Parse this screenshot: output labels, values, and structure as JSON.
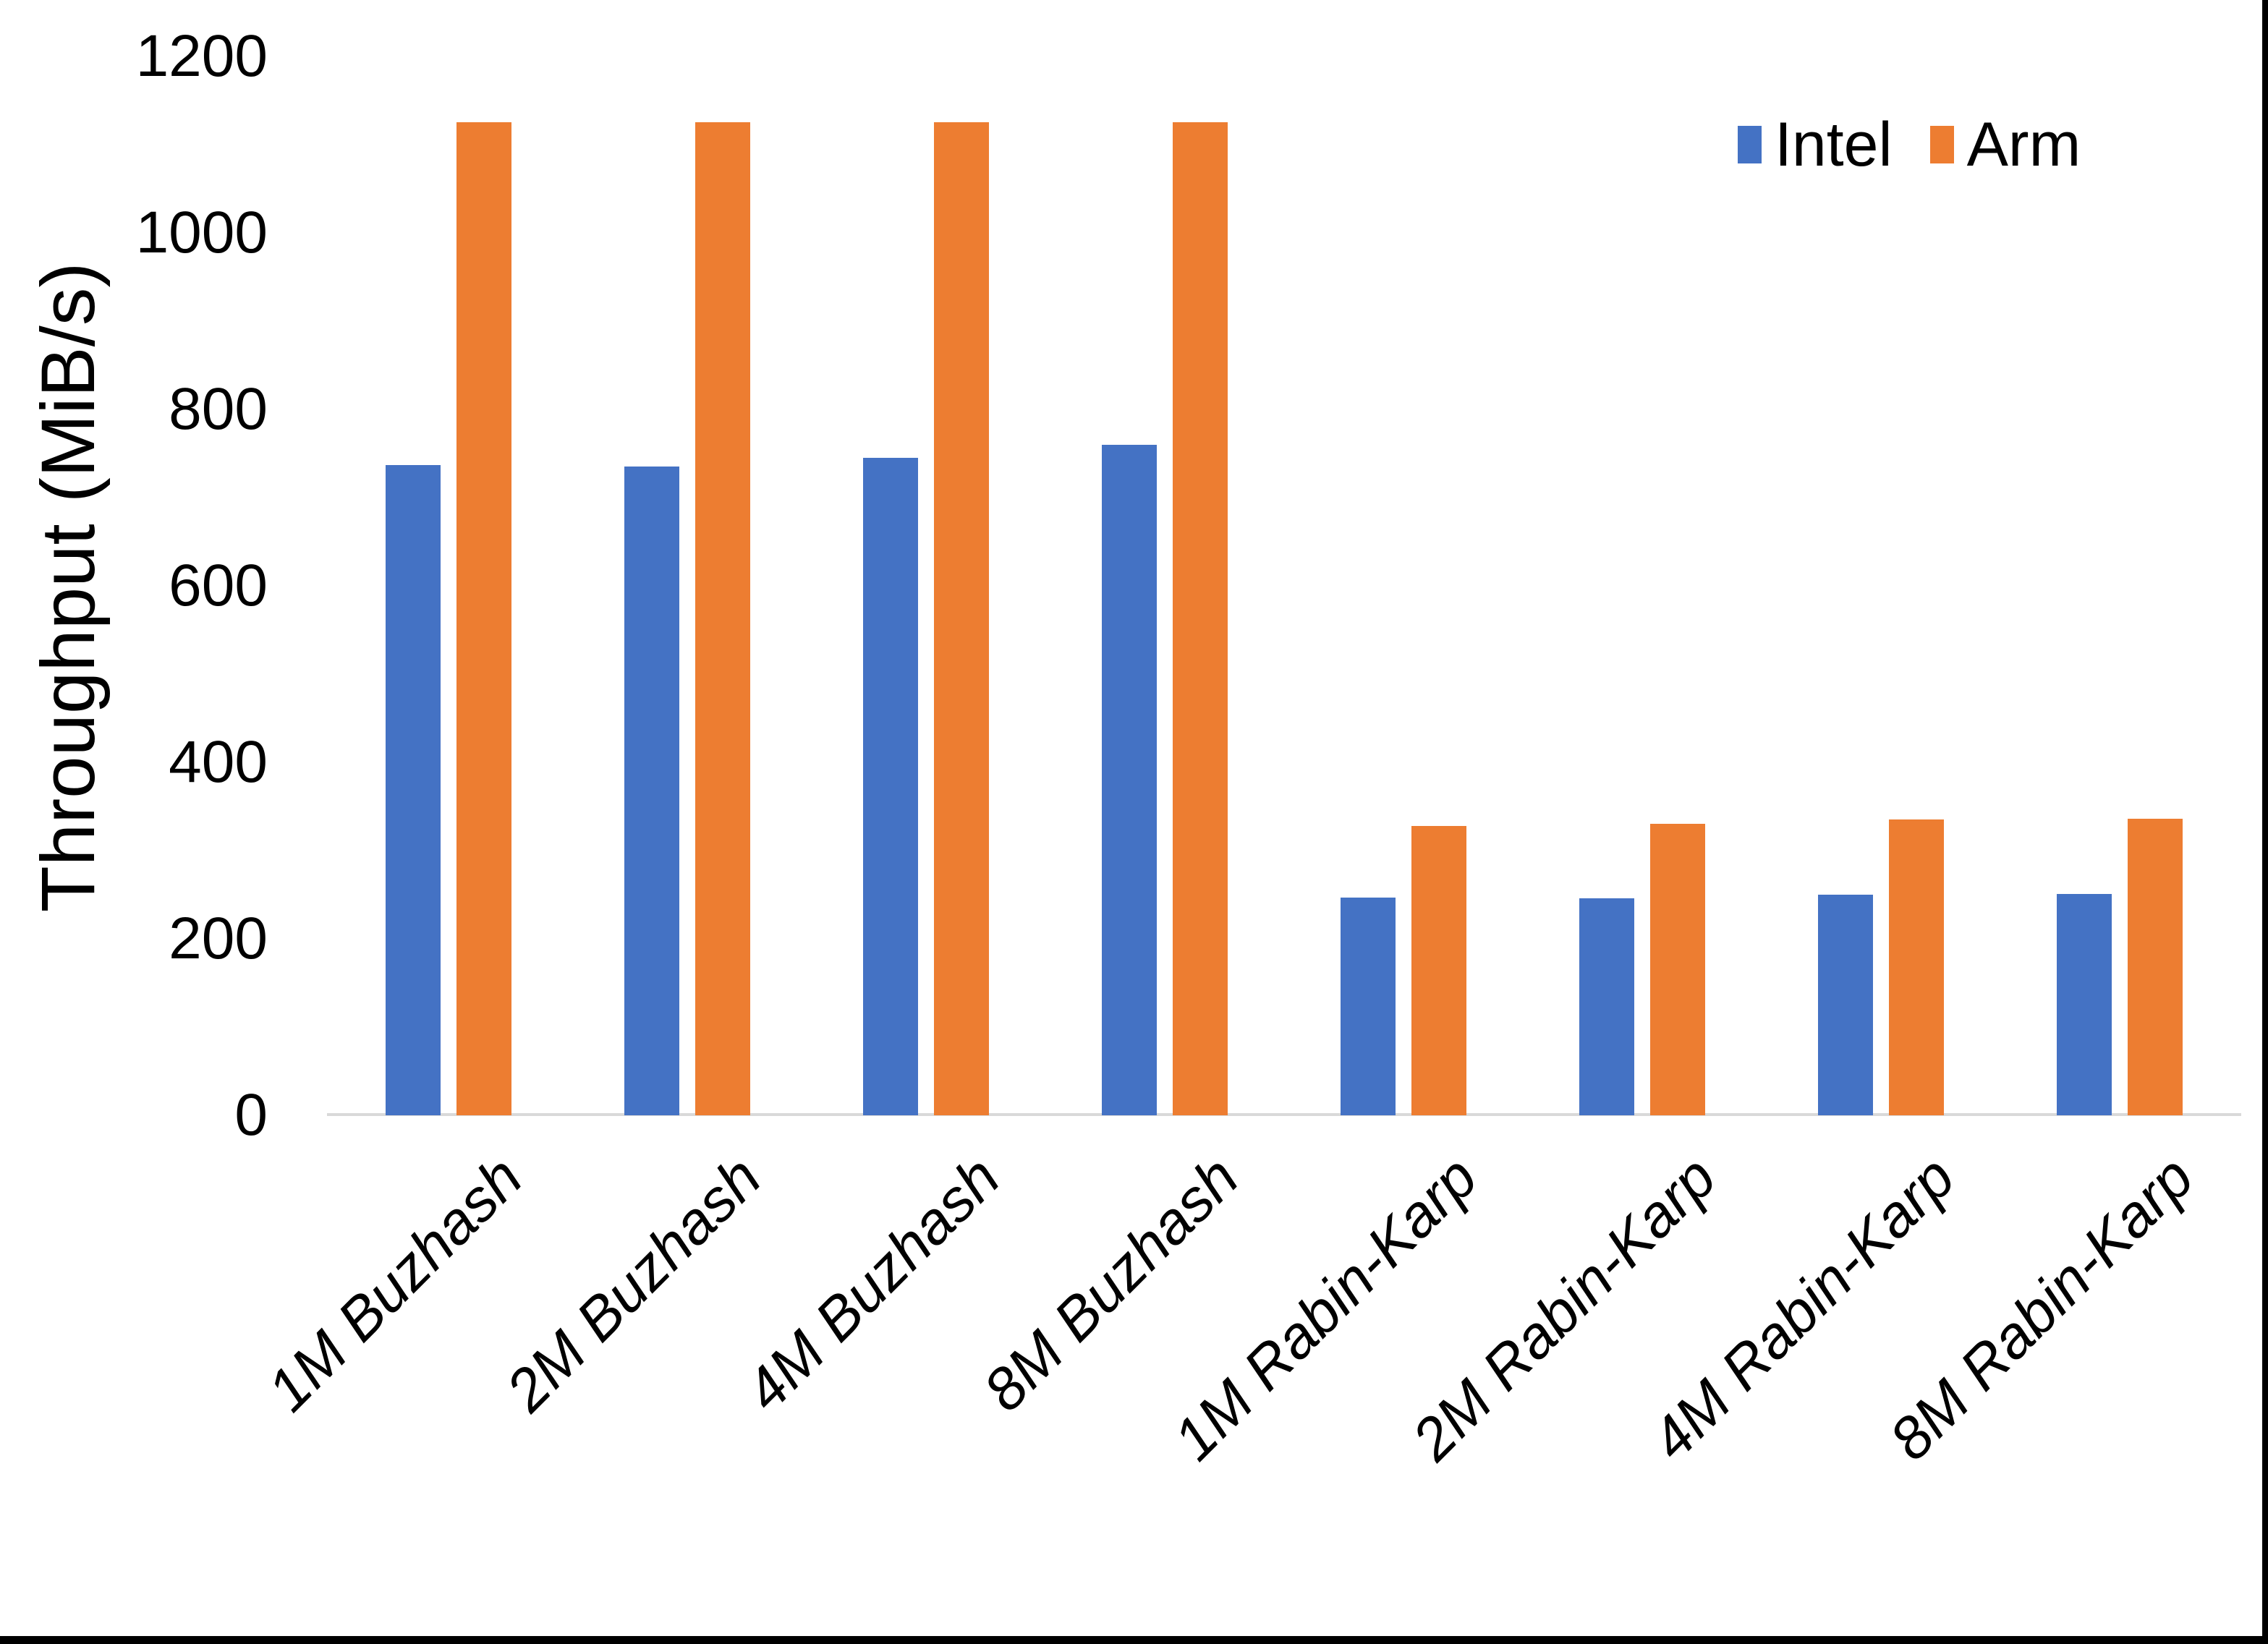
{
  "chart_data": {
    "type": "bar",
    "title": "",
    "ylabel": "Throughput (MiB/s)",
    "xlabel": "",
    "ylim": [
      0,
      1200
    ],
    "yticks": [
      0,
      200,
      400,
      600,
      800,
      1000,
      1200
    ],
    "grid": false,
    "legend_position": "top-right",
    "categories": [
      "1M Buzhash",
      "2M Buzhash",
      "4M Buzhash",
      "8M Buzhash",
      "1M Rabin-Karp",
      "2M Rabin-Karp",
      "4M Rabin-Karp",
      "8M Rabin-Karp"
    ],
    "series": [
      {
        "name": "Intel",
        "color": "#4472C4",
        "values": [
          737,
          735,
          745,
          760,
          247,
          246,
          250,
          251
        ]
      },
      {
        "name": "Arm",
        "color": "#ED7D31",
        "values": [
          1125,
          1125,
          1125,
          1125,
          328,
          330,
          335,
          336
        ]
      }
    ]
  }
}
